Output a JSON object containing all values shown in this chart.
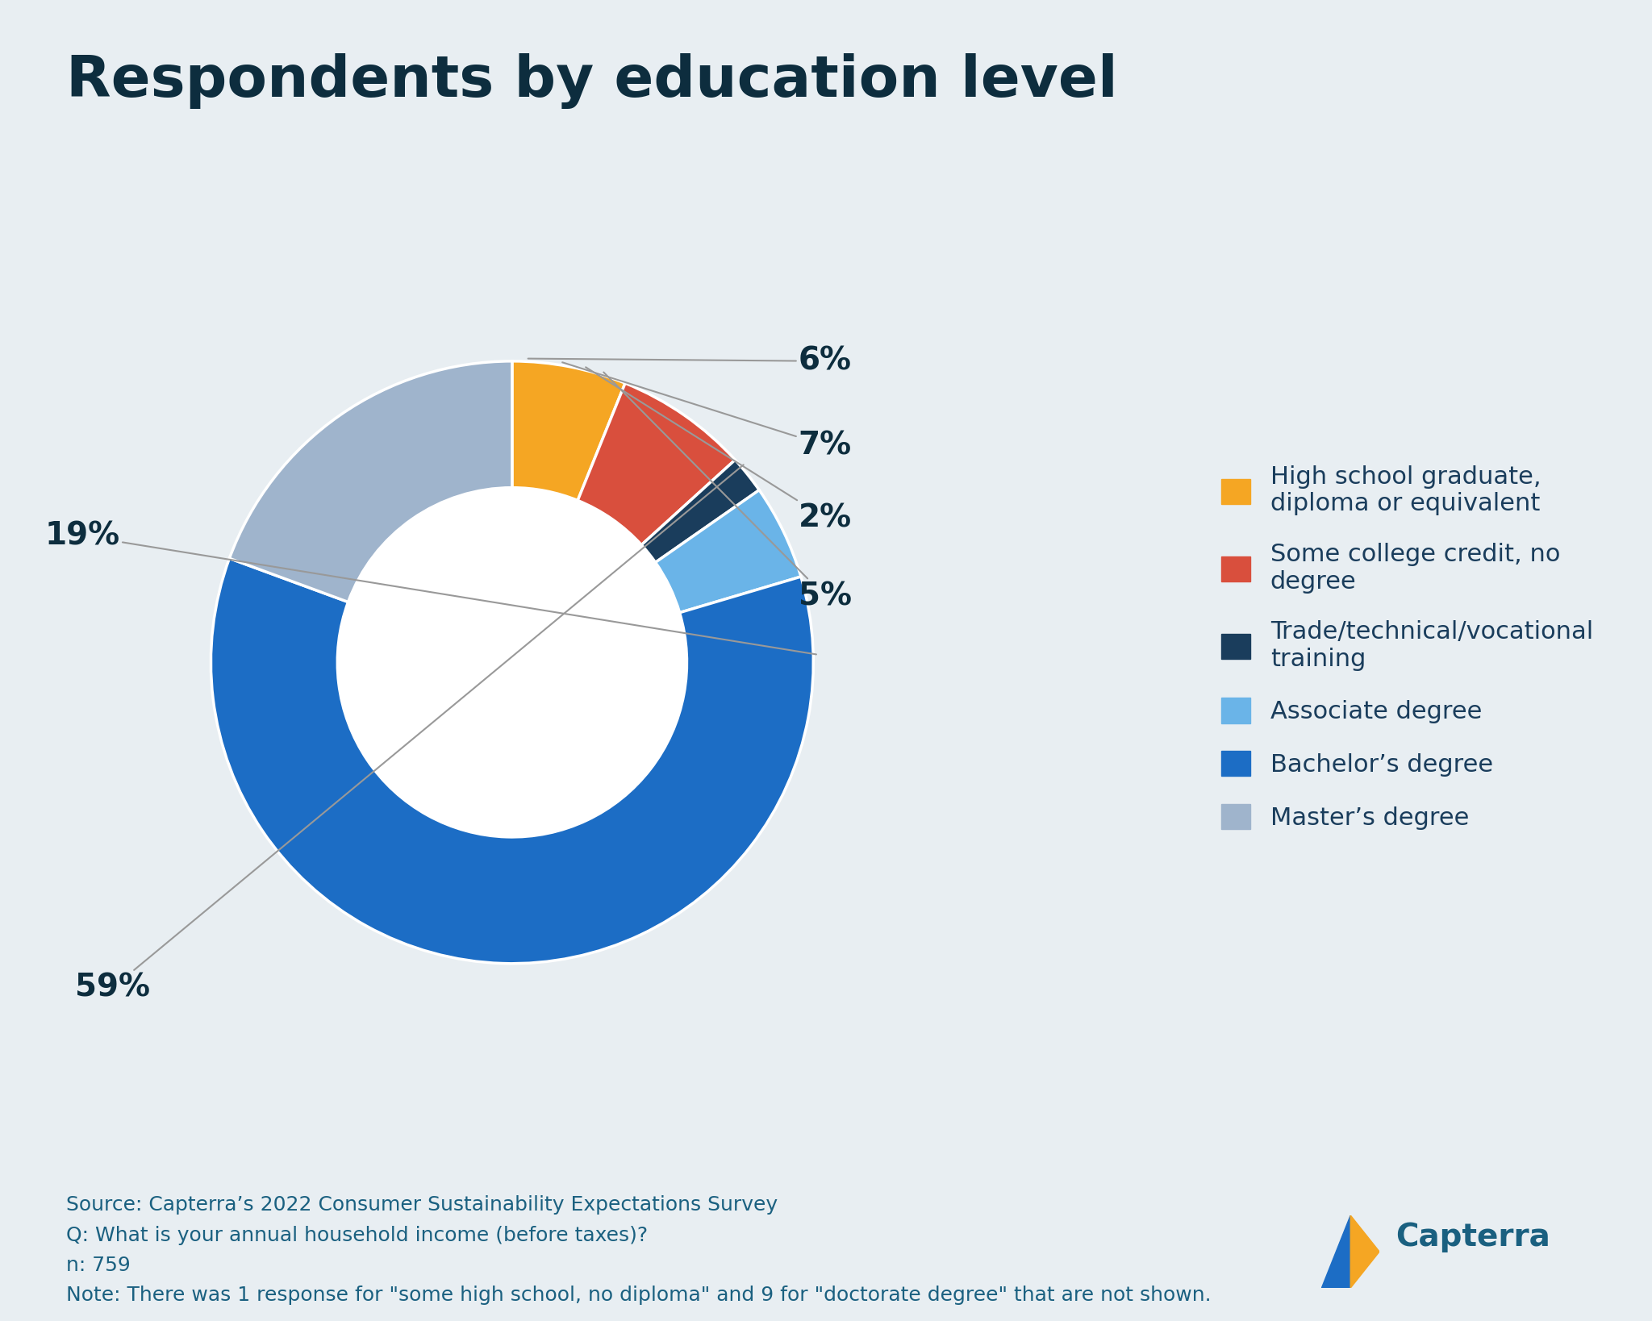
{
  "title": "Respondents by education level",
  "background_color": "#e8eef2",
  "title_color": "#0d2d3e",
  "title_fontsize": 52,
  "title_fontweight": "bold",
  "slices": [
    {
      "label": "High school graduate,\ndiploma or equivalent",
      "pct": 6,
      "color": "#f5a623"
    },
    {
      "label": "Some college credit, no\ndegree",
      "pct": 7,
      "color": "#d94f3d"
    },
    {
      "label": "Trade/technical/vocational\ntraining",
      "pct": 2,
      "color": "#1a3d5c"
    },
    {
      "label": "Associate degree",
      "pct": 5,
      "color": "#6ab4e8"
    },
    {
      "label": "Bachelor’s degree",
      "pct": 59,
      "color": "#1c6dc5"
    },
    {
      "label": "Master’s degree",
      "pct": 19,
      "color": "#9fb4cc"
    }
  ],
  "annotation_labels": [
    "6%",
    "7%",
    "2%",
    "5%",
    "59%",
    "19%"
  ],
  "annotation_color": "#0d2d3e",
  "ann_fontsize": 28,
  "legend_fontsize": 22,
  "legend_text_color": "#1a3d5c",
  "footnote_lines": [
    "Source: Capterra’s 2022 Consumer Sustainability Expectations Survey",
    "Q: What is your annual household income (before taxes)?",
    "n: 759",
    "Note: There was 1 response for \"some high school, no diploma\" and 9 for \"doctorate degree\" that are not shown."
  ],
  "footnote_color": "#1a6080",
  "footnote_fontsize": 18,
  "capterra_color": "#1a6080",
  "capterra_fontsize": 28
}
